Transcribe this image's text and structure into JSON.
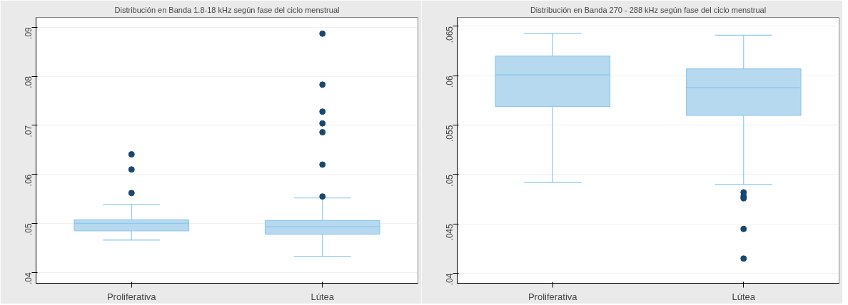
{
  "chart_data": [
    {
      "type": "box",
      "title": "Distribución en Banda 1.8-18 kHz según fase del ciclo menstrual",
      "categories": [
        "Proliferativa",
        "Lútea"
      ],
      "color": "#b7d9f0",
      "boxes": [
        {
          "low": 0.0466,
          "q1": 0.0485,
          "median": 0.05,
          "q3": 0.0507,
          "high": 0.0539,
          "outliers": [
            0.0641,
            0.061,
            0.0562
          ]
        },
        {
          "low": 0.0433,
          "q1": 0.0478,
          "median": 0.0493,
          "q3": 0.0506,
          "high": 0.0552,
          "outliers": [
            0.0887,
            0.0783,
            0.0728,
            0.0704,
            0.0686,
            0.062,
            0.0555
          ]
        }
      ],
      "ylim": [
        0.0378,
        0.092
      ],
      "yticks": [
        {
          "value": 0.04,
          "label": ".04"
        },
        {
          "value": 0.05,
          "label": ".05"
        },
        {
          "value": 0.06,
          "label": ".06"
        },
        {
          "value": 0.07,
          "label": ".07"
        },
        {
          "value": 0.08,
          "label": ".08"
        },
        {
          "value": 0.09,
          "label": ".09"
        }
      ],
      "grid": "y"
    },
    {
      "type": "box",
      "title": "Distribución en Banda 270 - 288 kHz según fase del ciclo menstrual",
      "categories": [
        "Proliferativa",
        "Lútea"
      ],
      "color": "#b7d9f0",
      "boxes": [
        {
          "low": 0.0492,
          "q1": 0.0569,
          "median": 0.0601,
          "q3": 0.062,
          "high": 0.0643
        },
        {
          "low": 0.049,
          "q1": 0.056,
          "median": 0.0588,
          "q3": 0.0607,
          "high": 0.0641,
          "outliers": [
            0.0482,
            0.0478,
            0.0476,
            0.0445,
            0.0415
          ]
        }
      ],
      "ylim": [
        0.039,
        0.0659
      ],
      "yticks": [
        {
          "value": 0.04,
          "label": ".04"
        },
        {
          "value": 0.045,
          "label": ".045"
        },
        {
          "value": 0.05,
          "label": ".05"
        },
        {
          "value": 0.055,
          "label": ".055"
        },
        {
          "value": 0.06,
          "label": ".06"
        },
        {
          "value": 0.065,
          "label": ".065"
        }
      ],
      "grid": "y"
    }
  ]
}
